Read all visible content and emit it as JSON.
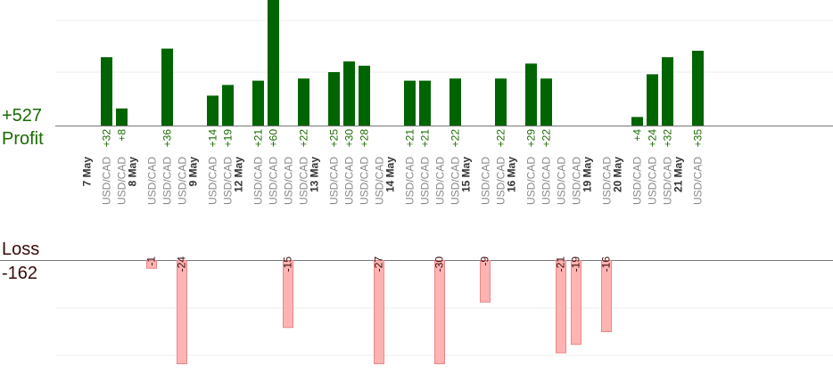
{
  "summary": {
    "profit_total": "+527",
    "profit_label": "Profit",
    "loss_label": "Loss",
    "loss_total": "-162"
  },
  "colors": {
    "profit_bar": "#006400",
    "profit_text": "#1a6b00",
    "loss_bar": "#ffb3b3",
    "loss_border": "#e88888",
    "loss_text": "#3a0a0a",
    "date_text": "#333333",
    "pair_text": "#888888",
    "grid": "#eeeeee",
    "axis": "#777777"
  },
  "chart_data": {
    "type": "bar",
    "pair": "USD/CAD",
    "profit_total": 527,
    "loss_total": -162,
    "dates": [
      "7 May",
      "8 May",
      "9 May",
      "12 May",
      "13 May",
      "14 May",
      "15 May",
      "16 May",
      "19 May",
      "20 May",
      "21 May"
    ],
    "trades": [
      {
        "date": "7 May",
        "values": [
          32,
          8
        ]
      },
      {
        "date": "8 May",
        "values": [
          -1,
          36,
          -24
        ]
      },
      {
        "date": "9 May",
        "values": [
          14,
          19
        ]
      },
      {
        "date": "12 May",
        "values": [
          21,
          60,
          -15,
          22
        ]
      },
      {
        "date": "13 May",
        "values": [
          25,
          30,
          28,
          -27
        ]
      },
      {
        "date": "14 May",
        "values": [
          21,
          21,
          -30,
          22
        ]
      },
      {
        "date": "15 May",
        "values": [
          -9,
          22
        ]
      },
      {
        "date": "16 May",
        "values": [
          29,
          22,
          -21,
          -19
        ]
      },
      {
        "date": "19 May",
        "values": [
          -16
        ]
      },
      {
        "date": "20 May",
        "values": [
          4,
          24,
          32
        ]
      },
      {
        "date": "21 May",
        "values": [
          35
        ]
      }
    ]
  }
}
